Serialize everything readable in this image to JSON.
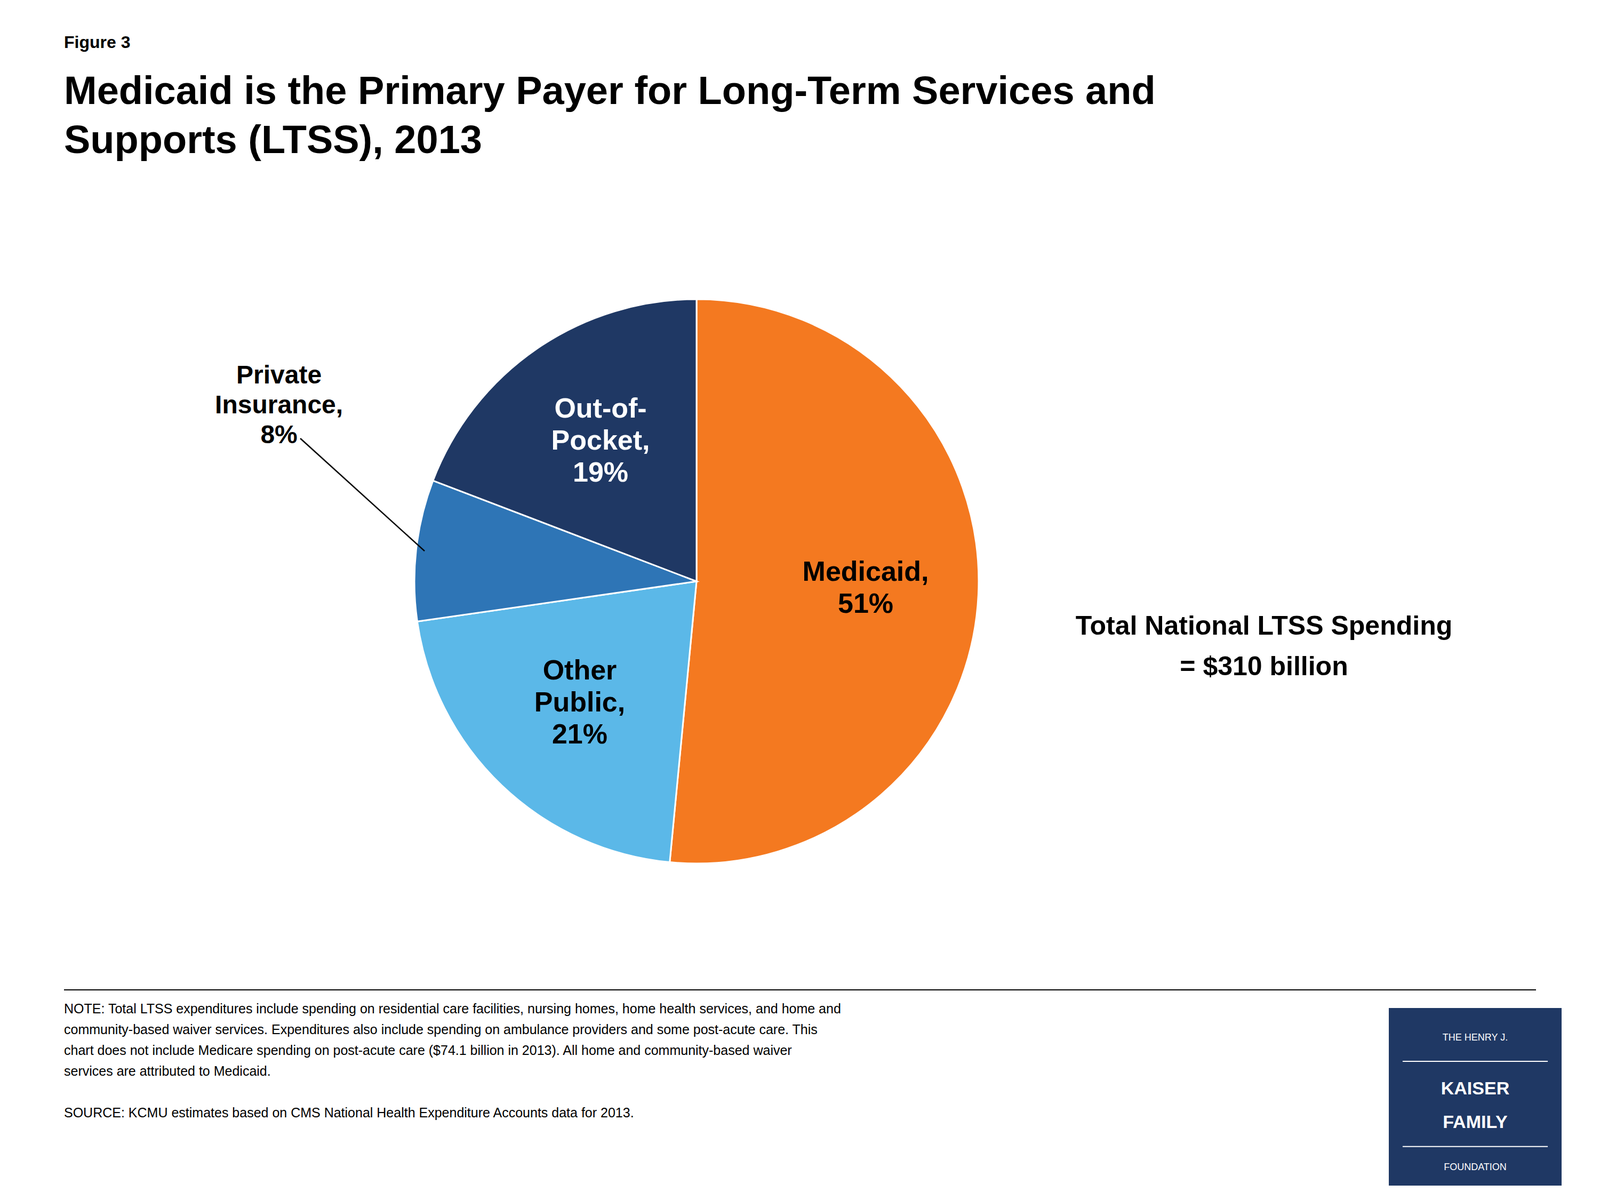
{
  "chart_data": {
    "type": "pie",
    "figure_label": "Figure 3",
    "title": "Medicaid is the Primary Payer for Long-Term Services and\nSupports (LTSS), 2013",
    "values": [
      51,
      21,
      8,
      19
    ],
    "value_labels": [
      "Medicaid,\n51%",
      "Other\nPublic,\n21%",
      "Private\nInsurance,\n8%",
      "Out-of-\nPocket,\n19%"
    ],
    "data_labels": true,
    "colors": [
      "#F47920",
      "#5BB8E8",
      "#2E75B6",
      "#1F3864"
    ],
    "label_colors": [
      "black",
      "black",
      "black",
      "white"
    ],
    "annotation": "Total National LTSS Spending\n= $310 billion",
    "notes": [
      "NOTE: Total LTSS expenditures include spending on residential care facilities, nursing homes, home health services, and home and",
      "community-based waiver services. Expenditures also include spending on ambulance providers and some post-acute care. This",
      "chart does not include Medicare spending on post-acute care ($74.1 billion in 2013). All home and community-based waiver",
      "services are attributed to Medicaid."
    ],
    "source": "SOURCE: KCMU estimates based on CMS National Health Expenditure Accounts data for 2013.",
    "logo": [
      "THE HENRY J.",
      "KAISER",
      "FAMILY",
      "FOUNDATION"
    ],
    "logo_color": "#1F3864"
  }
}
